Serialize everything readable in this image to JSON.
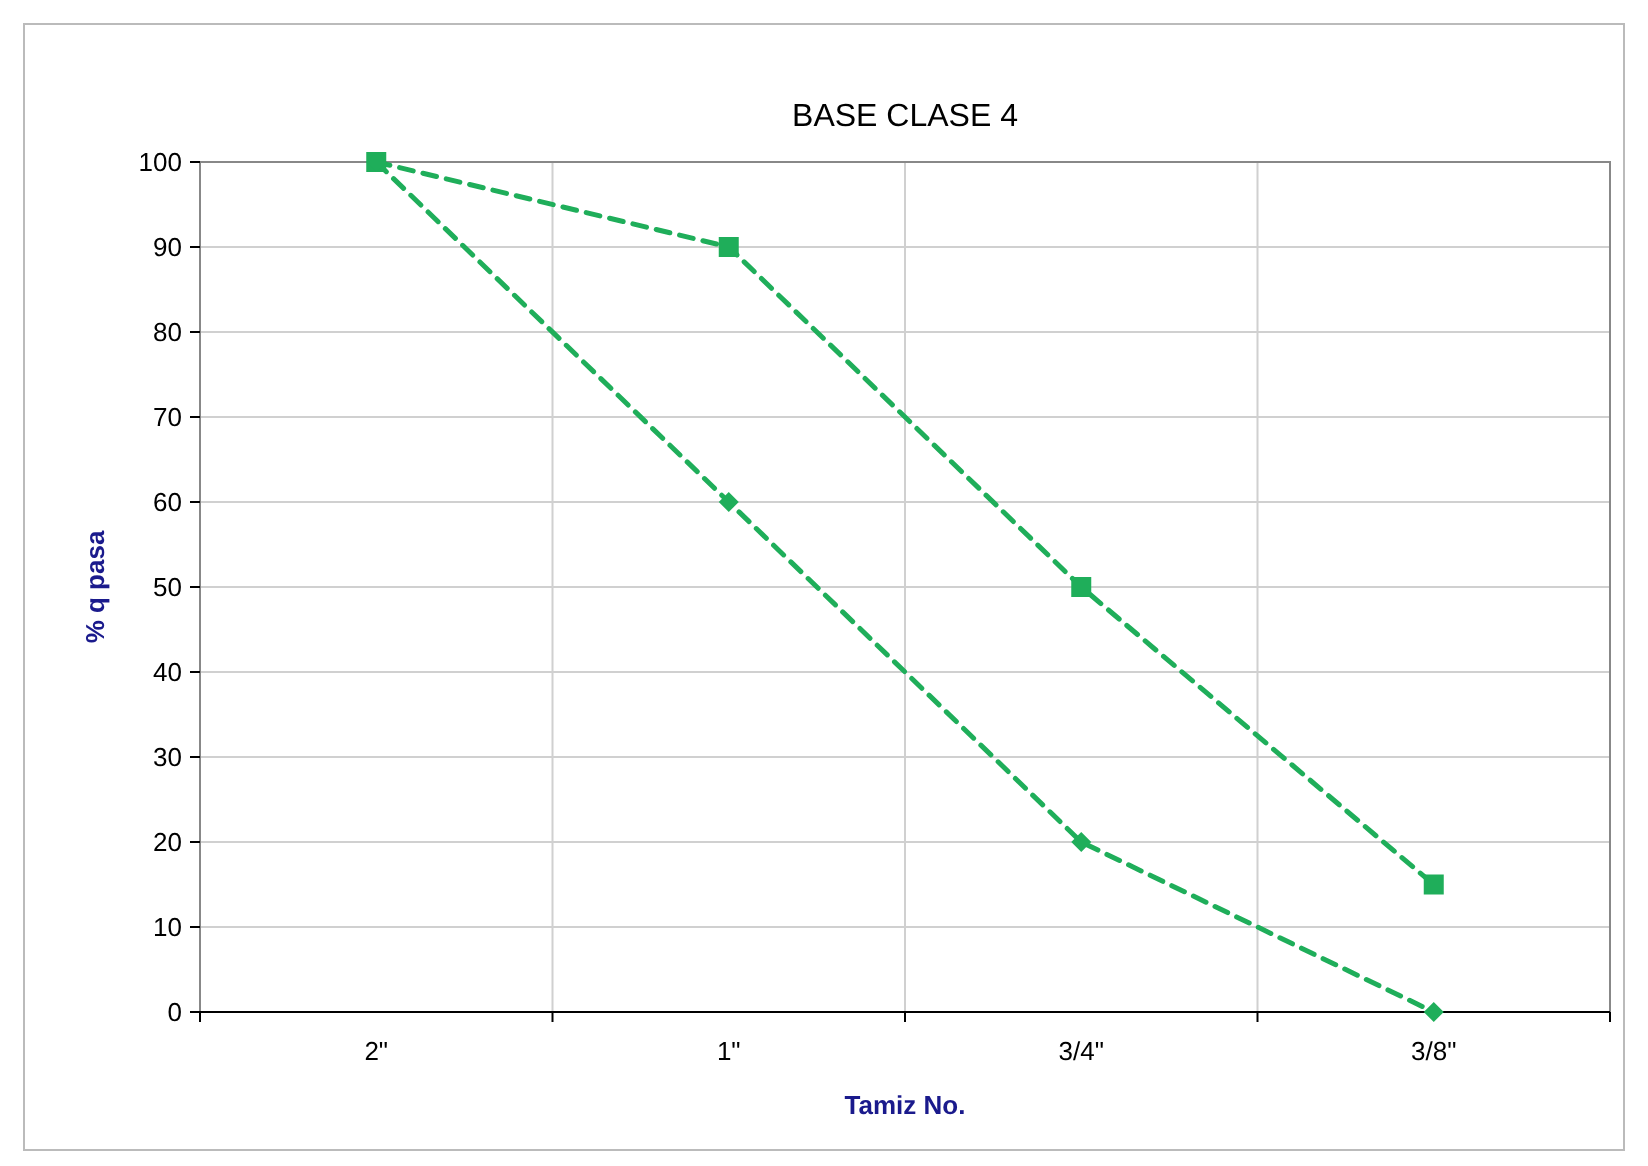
{
  "chart_data": {
    "type": "line",
    "title": "BASE CLASE 4",
    "xlabel": "Tamiz No.",
    "ylabel": "% q pasa",
    "categories": [
      "2\"",
      "1\"",
      "3/4\"",
      "3/8\""
    ],
    "series": [
      {
        "color": "#1fae5a",
        "values": [
          100,
          90,
          50,
          15
        ],
        "marker": "square"
      },
      {
        "color": "#1fae5a",
        "values": [
          100,
          60,
          20,
          0
        ],
        "marker": "diamond"
      }
    ],
    "ylim": [
      0,
      100
    ],
    "yticks": [
      0,
      10,
      20,
      30,
      40,
      50,
      60,
      70,
      80,
      90,
      100
    ],
    "grid": true,
    "line_style": "dashed"
  }
}
